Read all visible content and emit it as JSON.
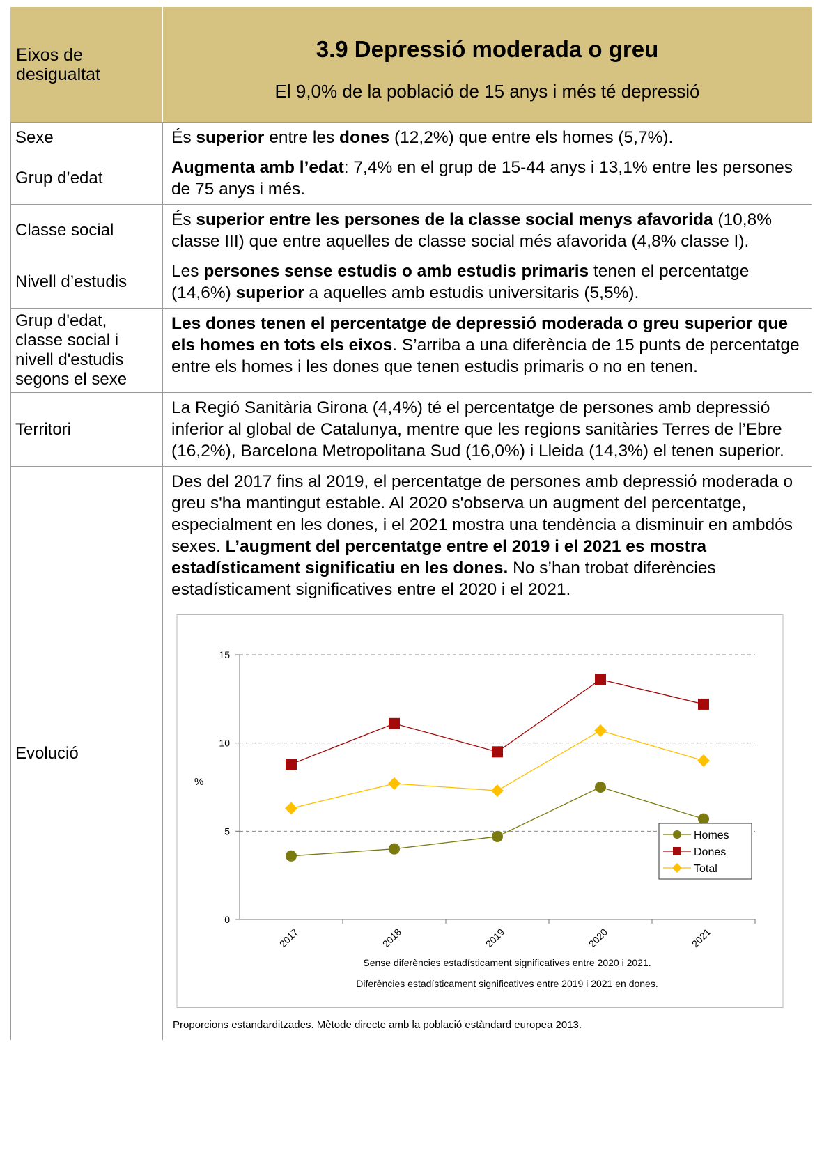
{
  "header": {
    "left": "Eixos de desigualtat",
    "title": "3.9  Depressió moderada o greu",
    "subtitle": "El 9,0% de la població de 15 anys i més té depressió"
  },
  "sections": [
    {
      "items": [
        {
          "label": "Sexe",
          "content": [
            {
              "text": "És "
            },
            {
              "text": "superior",
              "bold": true
            },
            {
              "text": " entre les "
            },
            {
              "text": "dones",
              "bold": true
            },
            {
              "text": " (12,2%) que entre els homes (5,7%)."
            }
          ]
        },
        {
          "label": "Grup d’edat",
          "content": [
            {
              "text": "Augmenta amb l’edat",
              "bold": true
            },
            {
              "text": ": 7,4% en el grup de 15-44 anys i 13,1% entre les persones de 75 anys i més."
            }
          ]
        }
      ]
    },
    {
      "items": [
        {
          "label": "Classe social",
          "content": [
            {
              "text": "És "
            },
            {
              "text": "superior entre les persones de la classe social menys afavorida",
              "bold": true
            },
            {
              "text": " (10,8% classe III) que entre aquelles de classe social més afavorida (4,8% classe I)."
            }
          ]
        },
        {
          "label": "Nivell d’estudis",
          "content": [
            {
              "text": "Les "
            },
            {
              "text": "persones sense estudis o amb estudis primaris",
              "bold": true
            },
            {
              "text": " tenen el percentatge (14,6%) "
            },
            {
              "text": "superior",
              "bold": true
            },
            {
              "text": " a aquelles amb estudis universitaris (5,5%)."
            }
          ]
        }
      ]
    },
    {
      "items": [
        {
          "label": "Grup d'edat, classe social i nivell d'estudis segons el sexe",
          "content": [
            {
              "text": "Les dones tenen el percentatge de depressió moderada o greu superior que els homes en tots els eixos",
              "bold": true
            },
            {
              "text": ". S’arriba a una diferència de 15 punts de percentatge entre els homes i les dones que tenen estudis primaris o no en tenen."
            }
          ]
        }
      ]
    },
    {
      "items": [
        {
          "label": "Territori",
          "content": [
            {
              "text": "La Regió Sanitària Girona (4,4%) té el percentatge de persones amb depressió inferior al global de Catalunya, mentre que les regions sanitàries Terres de l’Ebre (16,2%), Barcelona Metropolitana Sud (16,0%) i Lleida (14,3%) el tenen superior."
            }
          ]
        }
      ]
    },
    {
      "items": [
        {
          "label": "Evolució",
          "content": [
            {
              "text": "Des del 2017 fins al 2019, el percentatge de persones amb depressió moderada o greu s'ha mantingut estable. Al 2020 s'observa un augment del percentatge, especialment en les dones, i el 2021 mostra una tendència a disminuir en ambdós sexes. "
            },
            {
              "text": "L’augment del percentatge entre el 2019 i el 2021 es mostra estadísticament significatiu en les dones.",
              "bold": true
            },
            {
              "text": " No s’han trobat diferències estadísticament significatives entre el 2020 i el 2021."
            }
          ]
        }
      ]
    }
  ],
  "chart_data": {
    "type": "line",
    "categories": [
      "2017",
      "2018",
      "2019",
      "2020",
      "2021"
    ],
    "y_label": "%",
    "series": [
      {
        "name": "Homes",
        "color": "#7a7a10",
        "marker": "circle",
        "values": [
          3.6,
          4.0,
          4.7,
          7.5,
          5.7
        ]
      },
      {
        "name": "Dones",
        "color": "#a50a0a",
        "marker": "square",
        "values": [
          8.8,
          11.1,
          9.5,
          13.6,
          12.2
        ]
      },
      {
        "name": "Total",
        "color": "#ffc000",
        "marker": "diamond",
        "values": [
          6.3,
          7.7,
          7.3,
          10.7,
          9.0
        ]
      }
    ],
    "ylim": [
      0,
      15
    ],
    "yticks": [
      0,
      5,
      10,
      15
    ],
    "grid": true,
    "legend": "right",
    "notes": [
      "Sense diferències estadísticament significatives entre 2020 i 2021.",
      "Diferències estadísticament significatives entre 2019 i 2021 en dones."
    ]
  },
  "footnote": "Proporcions estandarditzades. Mètode directe amb la població estàndard europea 2013."
}
